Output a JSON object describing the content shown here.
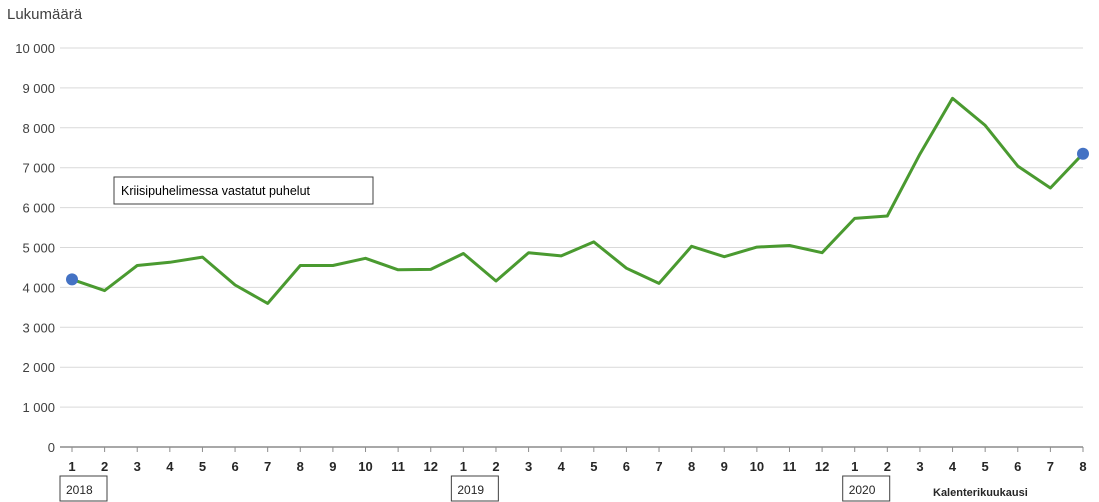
{
  "chart_data": {
    "type": "line",
    "ylabel": "Lukumäärä",
    "xlabel": "Kalenterikuukausi",
    "ylim": [
      0,
      10000
    ],
    "yticks": [
      0,
      1000,
      2000,
      3000,
      4000,
      5000,
      6000,
      7000,
      8000,
      9000,
      10000
    ],
    "ytick_labels": [
      "0",
      "1 000",
      "2 000",
      "3 000",
      "4 000",
      "5 000",
      "6 000",
      "7 000",
      "8 000",
      "9 000",
      "10 000"
    ],
    "categories": [
      "1",
      "2",
      "3",
      "4",
      "5",
      "6",
      "7",
      "8",
      "9",
      "10",
      "11",
      "12",
      "1",
      "2",
      "3",
      "4",
      "5",
      "6",
      "7",
      "8",
      "9",
      "10",
      "11",
      "12",
      "1",
      "2",
      "3",
      "4",
      "5",
      "6",
      "7",
      "8"
    ],
    "year_labels": [
      {
        "text": "2018",
        "index": 0
      },
      {
        "text": "2019",
        "index": 12
      },
      {
        "text": "2020",
        "index": 24
      }
    ],
    "series": [
      {
        "name": "Kriisipuhelimessa vastatut puhelut",
        "color": "#4a9a30",
        "values": [
          4200,
          3920,
          4550,
          4630,
          4760,
          4060,
          3600,
          4550,
          4550,
          4730,
          4440,
          4450,
          4850,
          4160,
          4870,
          4790,
          5140,
          4480,
          4100,
          5030,
          4770,
          5010,
          5050,
          4870,
          5730,
          5790,
          7340,
          8740,
          8060,
          7040,
          6490,
          7350
        ]
      }
    ],
    "endpoint_marker_color": "#4472c4",
    "grid": true,
    "annotation": "Kriisipuhelimessa vastatut puhelut"
  }
}
